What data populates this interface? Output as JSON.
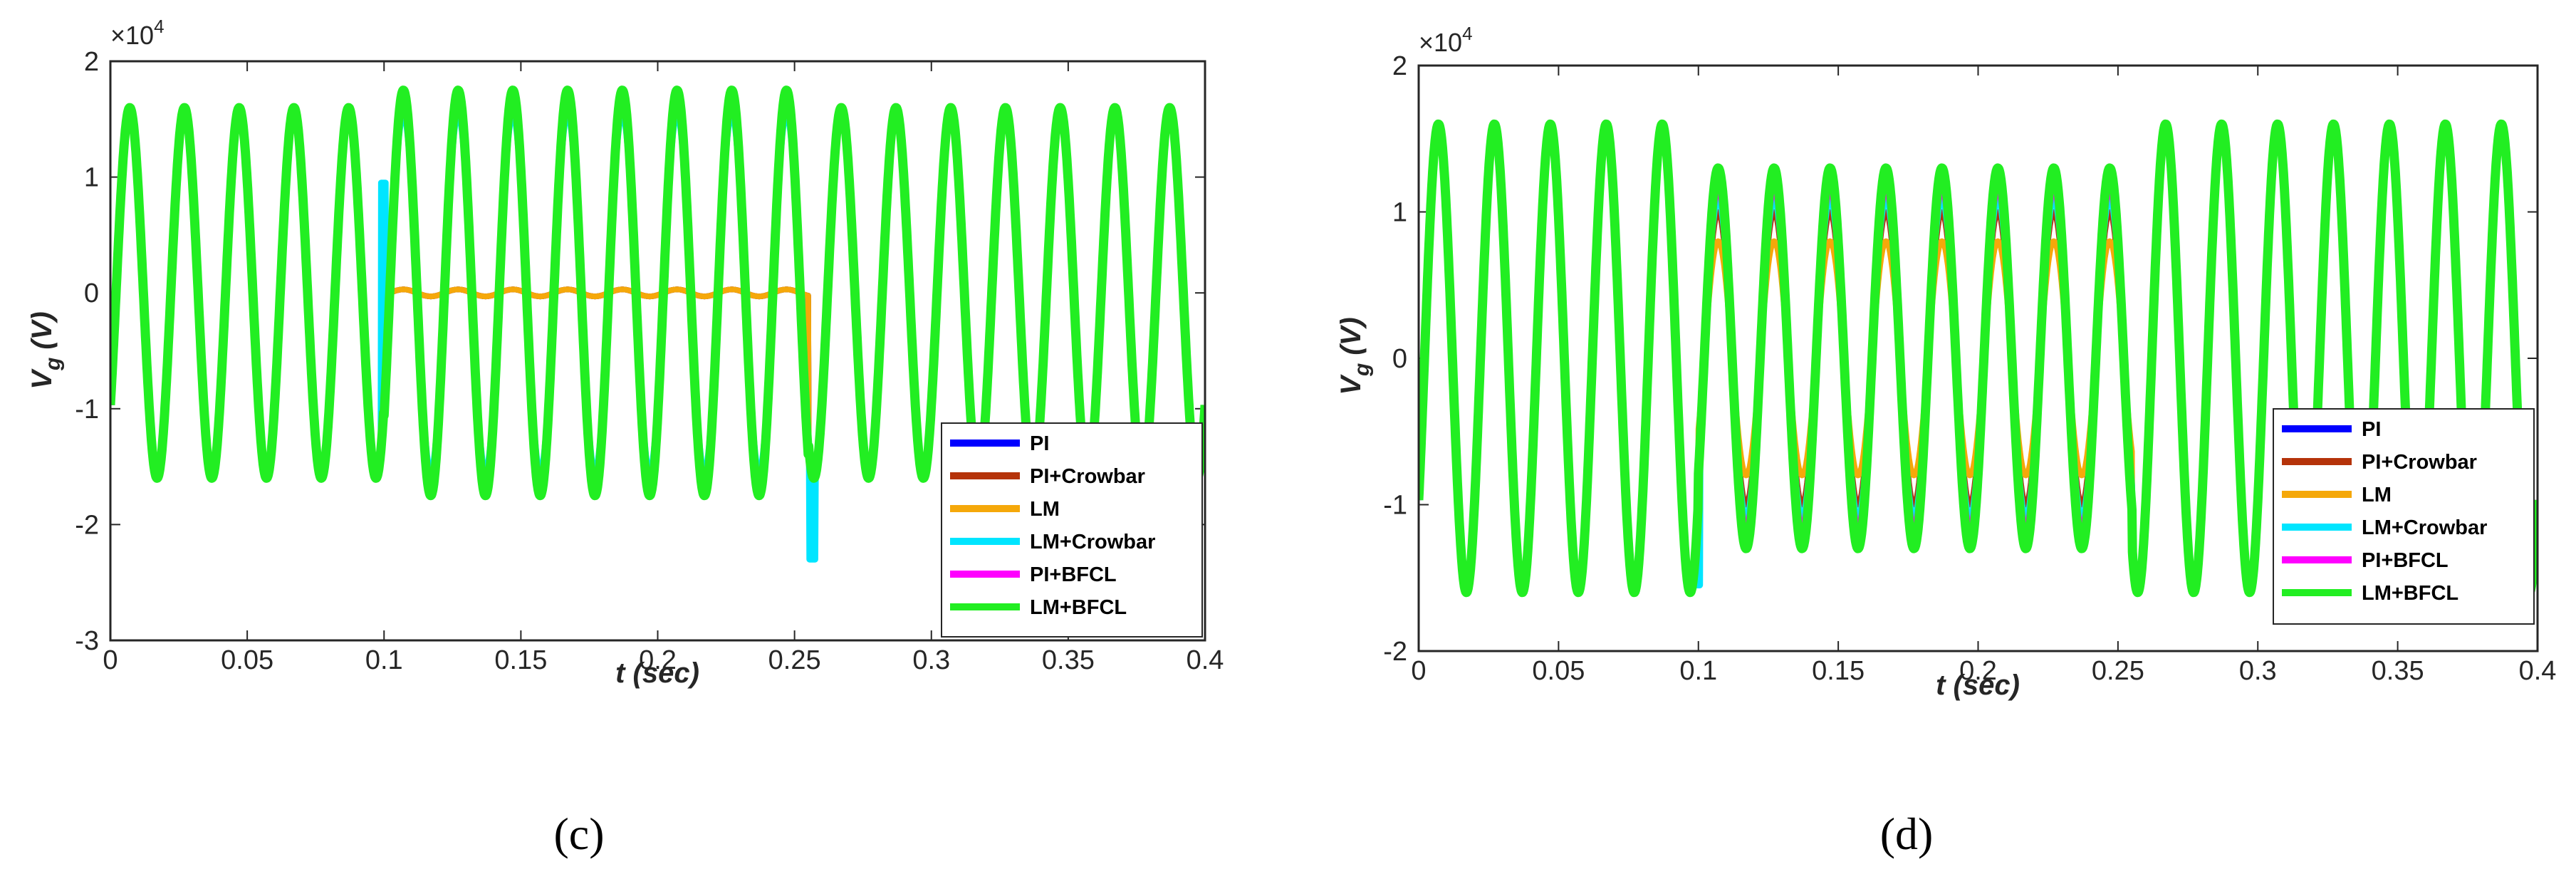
{
  "chart_data": [
    {
      "type": "line",
      "panel_label": "(c)",
      "xlabel": "t (sec)",
      "ylabel_main": "V",
      "ylabel_sub": "g",
      "ylabel_unit": " (V)",
      "exponent_base": "×10",
      "exponent_power": "4",
      "xlim": [
        0,
        0.4
      ],
      "ylim": [
        -3,
        2
      ],
      "y_scale_factor": 10000,
      "xticks": [
        0,
        0.05,
        0.1,
        0.15,
        0.2,
        0.25,
        0.3,
        0.35,
        0.4
      ],
      "xtick_labels": [
        "0",
        "0.05",
        "0.1",
        "0.15",
        "0.2",
        "0.25",
        "0.3",
        "0.35",
        "0.4"
      ],
      "yticks": [
        -3,
        -2,
        -1,
        0,
        1,
        2
      ],
      "ytick_labels": [
        "-3",
        "-2",
        "-1",
        "0",
        "1",
        "2"
      ],
      "legend_position": "bottom-right",
      "grid": false,
      "signal_frequency_hz": 50,
      "fault_interval_sec": [
        0.1,
        0.255
      ],
      "series": [
        {
          "name": "PI",
          "color": "#0000ff",
          "amplitude_x1e4": 1.6,
          "fault_amplitude_x1e4": 0.03,
          "end_value_x1e4": -1.0
        },
        {
          "name": "PI+Crowbar",
          "color": "#b5330a",
          "amplitude_x1e4": 1.6,
          "fault_amplitude_x1e4": 0.03,
          "spike_x1e4": -2.1
        },
        {
          "name": "LM",
          "color": "#f5a80a",
          "amplitude_x1e4": 1.6,
          "fault_amplitude_x1e4": 0.03
        },
        {
          "name": "LM+Crowbar",
          "color": "#00e5ff",
          "amplitude_x1e4": 1.6,
          "fault_amplitude_x1e4": 1.55,
          "spike_x1e4": -2.3,
          "start_spike_x1e4": 0.95
        },
        {
          "name": "PI+BFCL",
          "color": "#ff00ff",
          "amplitude_x1e4": 1.6,
          "fault_amplitude_x1e4": 1.6
        },
        {
          "name": "LM+BFCL",
          "color": "#22ee22",
          "amplitude_x1e4": 1.6,
          "fault_amplitude_x1e4": 1.75
        }
      ]
    },
    {
      "type": "line",
      "panel_label": "(d)",
      "xlabel": "t (sec)",
      "ylabel_main": "V",
      "ylabel_sub": "g",
      "ylabel_unit": " (V)",
      "exponent_base": "×10",
      "exponent_power": "4",
      "xlim": [
        0,
        0.4
      ],
      "ylim": [
        -2,
        2
      ],
      "y_scale_factor": 10000,
      "xticks": [
        0,
        0.05,
        0.1,
        0.15,
        0.2,
        0.25,
        0.3,
        0.35,
        0.4
      ],
      "xtick_labels": [
        "0",
        "0.05",
        "0.1",
        "0.15",
        "0.2",
        "0.25",
        "0.3",
        "0.35",
        "0.4"
      ],
      "yticks": [
        -2,
        -1,
        0,
        1,
        2
      ],
      "ytick_labels": [
        "-2",
        "-1",
        "0",
        "1",
        "2"
      ],
      "legend_position": "bottom-right",
      "grid": false,
      "signal_frequency_hz": 50,
      "fault_interval_sec": [
        0.1,
        0.255
      ],
      "series": [
        {
          "name": "PI",
          "color": "#0000ff",
          "amplitude_x1e4": 1.6,
          "fault_amplitude_x1e4": 1.1
        },
        {
          "name": "PI+Crowbar",
          "color": "#b5330a",
          "amplitude_x1e4": 1.6,
          "fault_amplitude_x1e4": 1.0
        },
        {
          "name": "LM",
          "color": "#f5a80a",
          "amplitude_x1e4": 1.6,
          "fault_amplitude_x1e4": 0.8
        },
        {
          "name": "LM+Crowbar",
          "color": "#00e5ff",
          "amplitude_x1e4": 1.6,
          "fault_amplitude_x1e4": 1.1,
          "start_spike_x1e4": -1.55
        },
        {
          "name": "PI+BFCL",
          "color": "#ff00ff",
          "amplitude_x1e4": 1.6,
          "fault_amplitude_x1e4": 1.15
        },
        {
          "name": "LM+BFCL",
          "color": "#22ee22",
          "amplitude_x1e4": 1.6,
          "fault_amplitude_x1e4": 1.3
        }
      ]
    }
  ]
}
